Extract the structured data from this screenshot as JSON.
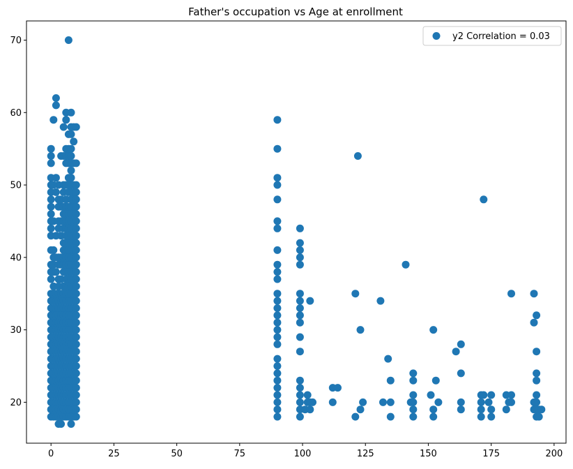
{
  "chart_data": {
    "type": "scatter",
    "title": "Father's occupation vs Age at enrollment",
    "xlabel": "",
    "ylabel": "",
    "xlim": [
      -9.75,
      204.75
    ],
    "ylim": [
      14.35,
      72.65
    ],
    "xticks": [
      0,
      25,
      50,
      75,
      100,
      125,
      150,
      175,
      200
    ],
    "yticks": [
      20,
      30,
      40,
      50,
      60,
      70
    ],
    "grid": false,
    "legend": {
      "position": "top-right",
      "label": "y2 Correlation = 0.03"
    },
    "marker_color": "#1f77b4",
    "points": [
      [
        0,
        18
      ],
      [
        0,
        19
      ],
      [
        0,
        20
      ],
      [
        0,
        21
      ],
      [
        0,
        22
      ],
      [
        0,
        23
      ],
      [
        0,
        24
      ],
      [
        0,
        25
      ],
      [
        0,
        26
      ],
      [
        0,
        27
      ],
      [
        0,
        28
      ],
      [
        0,
        29
      ],
      [
        0,
        30
      ],
      [
        0,
        31
      ],
      [
        0,
        32
      ],
      [
        0,
        33
      ],
      [
        0,
        34
      ],
      [
        0,
        35
      ],
      [
        0,
        37
      ],
      [
        0,
        38
      ],
      [
        0,
        39
      ],
      [
        0,
        41
      ],
      [
        0,
        43
      ],
      [
        0,
        44
      ],
      [
        0,
        45
      ],
      [
        0,
        46
      ],
      [
        0,
        47
      ],
      [
        0,
        48
      ],
      [
        0,
        49
      ],
      [
        0,
        50
      ],
      [
        0,
        51
      ],
      [
        0,
        53
      ],
      [
        0,
        54
      ],
      [
        0,
        55
      ],
      [
        1,
        18
      ],
      [
        1,
        19
      ],
      [
        1,
        20
      ],
      [
        1,
        21
      ],
      [
        1,
        22
      ],
      [
        1,
        23
      ],
      [
        1,
        24
      ],
      [
        1,
        25
      ],
      [
        1,
        26
      ],
      [
        1,
        27
      ],
      [
        1,
        28
      ],
      [
        1,
        29
      ],
      [
        1,
        30
      ],
      [
        1,
        31
      ],
      [
        1,
        32
      ],
      [
        1,
        33
      ],
      [
        1,
        34
      ],
      [
        1,
        35
      ],
      [
        1,
        36
      ],
      [
        1,
        38
      ],
      [
        1,
        39
      ],
      [
        1,
        40
      ],
      [
        1,
        41
      ],
      [
        1,
        45
      ],
      [
        1,
        50
      ],
      [
        1,
        59
      ],
      [
        2,
        18
      ],
      [
        2,
        19
      ],
      [
        2,
        20
      ],
      [
        2,
        21
      ],
      [
        2,
        22
      ],
      [
        2,
        23
      ],
      [
        2,
        24
      ],
      [
        2,
        25
      ],
      [
        2,
        26
      ],
      [
        2,
        27
      ],
      [
        2,
        28
      ],
      [
        2,
        29
      ],
      [
        2,
        30
      ],
      [
        2,
        31
      ],
      [
        2,
        32
      ],
      [
        2,
        33
      ],
      [
        2,
        34
      ],
      [
        2,
        35
      ],
      [
        2,
        38
      ],
      [
        2,
        40
      ],
      [
        2,
        43
      ],
      [
        2,
        49
      ],
      [
        2,
        51
      ],
      [
        2,
        61
      ],
      [
        2,
        62
      ],
      [
        3,
        17
      ],
      [
        3,
        18
      ],
      [
        3,
        19
      ],
      [
        3,
        20
      ],
      [
        3,
        21
      ],
      [
        3,
        22
      ],
      [
        3,
        23
      ],
      [
        3,
        24
      ],
      [
        3,
        25
      ],
      [
        3,
        26
      ],
      [
        3,
        27
      ],
      [
        3,
        28
      ],
      [
        3,
        29
      ],
      [
        3,
        30
      ],
      [
        3,
        31
      ],
      [
        3,
        32
      ],
      [
        3,
        33
      ],
      [
        3,
        34
      ],
      [
        3,
        35
      ],
      [
        3,
        36
      ],
      [
        3,
        37
      ],
      [
        3,
        39
      ],
      [
        3,
        40
      ],
      [
        3,
        44
      ],
      [
        3,
        45
      ],
      [
        3,
        47
      ],
      [
        3,
        48
      ],
      [
        3,
        50
      ],
      [
        4,
        17
      ],
      [
        4,
        18
      ],
      [
        4,
        19
      ],
      [
        4,
        20
      ],
      [
        4,
        21
      ],
      [
        4,
        22
      ],
      [
        4,
        23
      ],
      [
        4,
        24
      ],
      [
        4,
        25
      ],
      [
        4,
        26
      ],
      [
        4,
        27
      ],
      [
        4,
        28
      ],
      [
        4,
        29
      ],
      [
        4,
        30
      ],
      [
        4,
        31
      ],
      [
        4,
        32
      ],
      [
        4,
        33
      ],
      [
        4,
        34
      ],
      [
        4,
        35
      ],
      [
        4,
        37
      ],
      [
        4,
        39
      ],
      [
        4,
        40
      ],
      [
        4,
        43
      ],
      [
        4,
        45
      ],
      [
        4,
        47
      ],
      [
        4,
        48
      ],
      [
        4,
        54
      ],
      [
        5,
        18
      ],
      [
        5,
        19
      ],
      [
        5,
        20
      ],
      [
        5,
        21
      ],
      [
        5,
        22
      ],
      [
        5,
        23
      ],
      [
        5,
        24
      ],
      [
        5,
        25
      ],
      [
        5,
        26
      ],
      [
        5,
        27
      ],
      [
        5,
        28
      ],
      [
        5,
        29
      ],
      [
        5,
        30
      ],
      [
        5,
        31
      ],
      [
        5,
        32
      ],
      [
        5,
        33
      ],
      [
        5,
        34
      ],
      [
        5,
        35
      ],
      [
        5,
        36
      ],
      [
        5,
        38
      ],
      [
        5,
        39
      ],
      [
        5,
        40
      ],
      [
        5,
        41
      ],
      [
        5,
        42
      ],
      [
        5,
        44
      ],
      [
        5,
        45
      ],
      [
        5,
        46
      ],
      [
        5,
        47
      ],
      [
        5,
        49
      ],
      [
        5,
        50
      ],
      [
        5,
        54
      ],
      [
        5,
        58
      ],
      [
        6,
        18
      ],
      [
        6,
        19
      ],
      [
        6,
        20
      ],
      [
        6,
        21
      ],
      [
        6,
        22
      ],
      [
        6,
        23
      ],
      [
        6,
        24
      ],
      [
        6,
        25
      ],
      [
        6,
        26
      ],
      [
        6,
        27
      ],
      [
        6,
        28
      ],
      [
        6,
        29
      ],
      [
        6,
        30
      ],
      [
        6,
        31
      ],
      [
        6,
        32
      ],
      [
        6,
        33
      ],
      [
        6,
        34
      ],
      [
        6,
        35
      ],
      [
        6,
        36
      ],
      [
        6,
        37
      ],
      [
        6,
        38
      ],
      [
        6,
        39
      ],
      [
        6,
        40
      ],
      [
        6,
        41
      ],
      [
        6,
        42
      ],
      [
        6,
        43
      ],
      [
        6,
        44
      ],
      [
        6,
        45
      ],
      [
        6,
        46
      ],
      [
        6,
        47
      ],
      [
        6,
        48
      ],
      [
        6,
        50
      ],
      [
        6,
        53
      ],
      [
        6,
        54
      ],
      [
        6,
        55
      ],
      [
        6,
        59
      ],
      [
        6,
        60
      ],
      [
        7,
        18
      ],
      [
        7,
        19
      ],
      [
        7,
        20
      ],
      [
        7,
        21
      ],
      [
        7,
        22
      ],
      [
        7,
        23
      ],
      [
        7,
        24
      ],
      [
        7,
        25
      ],
      [
        7,
        26
      ],
      [
        7,
        27
      ],
      [
        7,
        28
      ],
      [
        7,
        29
      ],
      [
        7,
        30
      ],
      [
        7,
        31
      ],
      [
        7,
        32
      ],
      [
        7,
        33
      ],
      [
        7,
        34
      ],
      [
        7,
        35
      ],
      [
        7,
        36
      ],
      [
        7,
        37
      ],
      [
        7,
        38
      ],
      [
        7,
        39
      ],
      [
        7,
        40
      ],
      [
        7,
        41
      ],
      [
        7,
        42
      ],
      [
        7,
        43
      ],
      [
        7,
        44
      ],
      [
        7,
        45
      ],
      [
        7,
        46
      ],
      [
        7,
        47
      ],
      [
        7,
        49
      ],
      [
        7,
        50
      ],
      [
        7,
        51
      ],
      [
        7,
        53
      ],
      [
        7,
        54
      ],
      [
        7,
        55
      ],
      [
        7,
        57
      ],
      [
        7,
        70
      ],
      [
        8,
        17
      ],
      [
        8,
        18
      ],
      [
        8,
        19
      ],
      [
        8,
        20
      ],
      [
        8,
        21
      ],
      [
        8,
        22
      ],
      [
        8,
        23
      ],
      [
        8,
        24
      ],
      [
        8,
        25
      ],
      [
        8,
        26
      ],
      [
        8,
        27
      ],
      [
        8,
        28
      ],
      [
        8,
        29
      ],
      [
        8,
        30
      ],
      [
        8,
        31
      ],
      [
        8,
        32
      ],
      [
        8,
        33
      ],
      [
        8,
        34
      ],
      [
        8,
        35
      ],
      [
        8,
        36
      ],
      [
        8,
        37
      ],
      [
        8,
        38
      ],
      [
        8,
        39
      ],
      [
        8,
        40
      ],
      [
        8,
        41
      ],
      [
        8,
        42
      ],
      [
        8,
        43
      ],
      [
        8,
        44
      ],
      [
        8,
        45
      ],
      [
        8,
        46
      ],
      [
        8,
        47
      ],
      [
        8,
        48
      ],
      [
        8,
        49
      ],
      [
        8,
        50
      ],
      [
        8,
        51
      ],
      [
        8,
        52
      ],
      [
        8,
        53
      ],
      [
        8,
        54
      ],
      [
        8,
        55
      ],
      [
        8,
        57
      ],
      [
        8,
        58
      ],
      [
        8,
        60
      ],
      [
        9,
        18
      ],
      [
        9,
        19
      ],
      [
        9,
        20
      ],
      [
        9,
        21
      ],
      [
        9,
        22
      ],
      [
        9,
        23
      ],
      [
        9,
        24
      ],
      [
        9,
        25
      ],
      [
        9,
        26
      ],
      [
        9,
        27
      ],
      [
        9,
        28
      ],
      [
        9,
        29
      ],
      [
        9,
        30
      ],
      [
        9,
        31
      ],
      [
        9,
        32
      ],
      [
        9,
        33
      ],
      [
        9,
        34
      ],
      [
        9,
        35
      ],
      [
        9,
        36
      ],
      [
        9,
        37
      ],
      [
        9,
        38
      ],
      [
        9,
        39
      ],
      [
        9,
        40
      ],
      [
        9,
        41
      ],
      [
        9,
        42
      ],
      [
        9,
        43
      ],
      [
        9,
        44
      ],
      [
        9,
        45
      ],
      [
        9,
        46
      ],
      [
        9,
        47
      ],
      [
        9,
        48
      ],
      [
        9,
        49
      ],
      [
        9,
        50
      ],
      [
        9,
        53
      ],
      [
        9,
        56
      ],
      [
        9,
        58
      ],
      [
        10,
        18
      ],
      [
        10,
        19
      ],
      [
        10,
        20
      ],
      [
        10,
        21
      ],
      [
        10,
        22
      ],
      [
        10,
        23
      ],
      [
        10,
        24
      ],
      [
        10,
        25
      ],
      [
        10,
        26
      ],
      [
        10,
        27
      ],
      [
        10,
        28
      ],
      [
        10,
        29
      ],
      [
        10,
        30
      ],
      [
        10,
        31
      ],
      [
        10,
        32
      ],
      [
        10,
        33
      ],
      [
        10,
        34
      ],
      [
        10,
        35
      ],
      [
        10,
        36
      ],
      [
        10,
        37
      ],
      [
        10,
        38
      ],
      [
        10,
        39
      ],
      [
        10,
        40
      ],
      [
        10,
        41
      ],
      [
        10,
        42
      ],
      [
        10,
        43
      ],
      [
        10,
        44
      ],
      [
        10,
        45
      ],
      [
        10,
        46
      ],
      [
        10,
        47
      ],
      [
        10,
        48
      ],
      [
        10,
        49
      ],
      [
        10,
        50
      ],
      [
        10,
        53
      ],
      [
        10,
        58
      ],
      [
        90,
        18
      ],
      [
        90,
        19
      ],
      [
        90,
        20
      ],
      [
        90,
        21
      ],
      [
        90,
        22
      ],
      [
        90,
        23
      ],
      [
        90,
        24
      ],
      [
        90,
        25
      ],
      [
        90,
        26
      ],
      [
        90,
        28
      ],
      [
        90,
        29
      ],
      [
        90,
        30
      ],
      [
        90,
        31
      ],
      [
        90,
        32
      ],
      [
        90,
        33
      ],
      [
        90,
        34
      ],
      [
        90,
        35
      ],
      [
        90,
        37
      ],
      [
        90,
        38
      ],
      [
        90,
        39
      ],
      [
        90,
        41
      ],
      [
        90,
        44
      ],
      [
        90,
        45
      ],
      [
        90,
        48
      ],
      [
        90,
        50
      ],
      [
        90,
        51
      ],
      [
        90,
        55
      ],
      [
        90,
        59
      ],
      [
        99,
        18
      ],
      [
        99,
        19
      ],
      [
        99,
        20
      ],
      [
        99,
        21
      ],
      [
        99,
        22
      ],
      [
        99,
        23
      ],
      [
        99,
        27
      ],
      [
        99,
        29
      ],
      [
        99,
        31
      ],
      [
        99,
        32
      ],
      [
        99,
        33
      ],
      [
        99,
        34
      ],
      [
        99,
        35
      ],
      [
        99,
        39
      ],
      [
        99,
        40
      ],
      [
        99,
        41
      ],
      [
        99,
        42
      ],
      [
        99,
        44
      ],
      [
        101,
        19
      ],
      [
        102,
        20
      ],
      [
        102,
        21
      ],
      [
        103,
        19
      ],
      [
        103,
        20
      ],
      [
        103,
        34
      ],
      [
        104,
        20
      ],
      [
        112,
        20
      ],
      [
        112,
        22
      ],
      [
        114,
        22
      ],
      [
        121,
        18
      ],
      [
        121,
        35
      ],
      [
        122,
        54
      ],
      [
        123,
        19
      ],
      [
        123,
        30
      ],
      [
        124,
        20
      ],
      [
        131,
        34
      ],
      [
        132,
        20
      ],
      [
        134,
        26
      ],
      [
        135,
        18
      ],
      [
        135,
        20
      ],
      [
        135,
        23
      ],
      [
        141,
        39
      ],
      [
        143,
        20
      ],
      [
        144,
        18
      ],
      [
        144,
        19
      ],
      [
        144,
        20
      ],
      [
        144,
        21
      ],
      [
        144,
        23
      ],
      [
        144,
        24
      ],
      [
        151,
        21
      ],
      [
        152,
        18
      ],
      [
        152,
        19
      ],
      [
        152,
        30
      ],
      [
        153,
        23
      ],
      [
        154,
        20
      ],
      [
        161,
        27
      ],
      [
        163,
        19
      ],
      [
        163,
        20
      ],
      [
        163,
        24
      ],
      [
        163,
        28
      ],
      [
        171,
        18
      ],
      [
        171,
        19
      ],
      [
        171,
        20
      ],
      [
        171,
        21
      ],
      [
        172,
        21
      ],
      [
        172,
        48
      ],
      [
        174,
        20
      ],
      [
        175,
        18
      ],
      [
        175,
        19
      ],
      [
        175,
        21
      ],
      [
        181,
        19
      ],
      [
        181,
        21
      ],
      [
        182,
        20
      ],
      [
        183,
        20
      ],
      [
        183,
        21
      ],
      [
        183,
        35
      ],
      [
        192,
        19
      ],
      [
        192,
        20
      ],
      [
        192,
        31
      ],
      [
        192,
        35
      ],
      [
        193,
        18
      ],
      [
        193,
        19
      ],
      [
        193,
        20
      ],
      [
        193,
        21
      ],
      [
        193,
        23
      ],
      [
        193,
        24
      ],
      [
        193,
        27
      ],
      [
        193,
        32
      ],
      [
        194,
        18
      ],
      [
        194,
        19
      ],
      [
        195,
        19
      ]
    ]
  }
}
